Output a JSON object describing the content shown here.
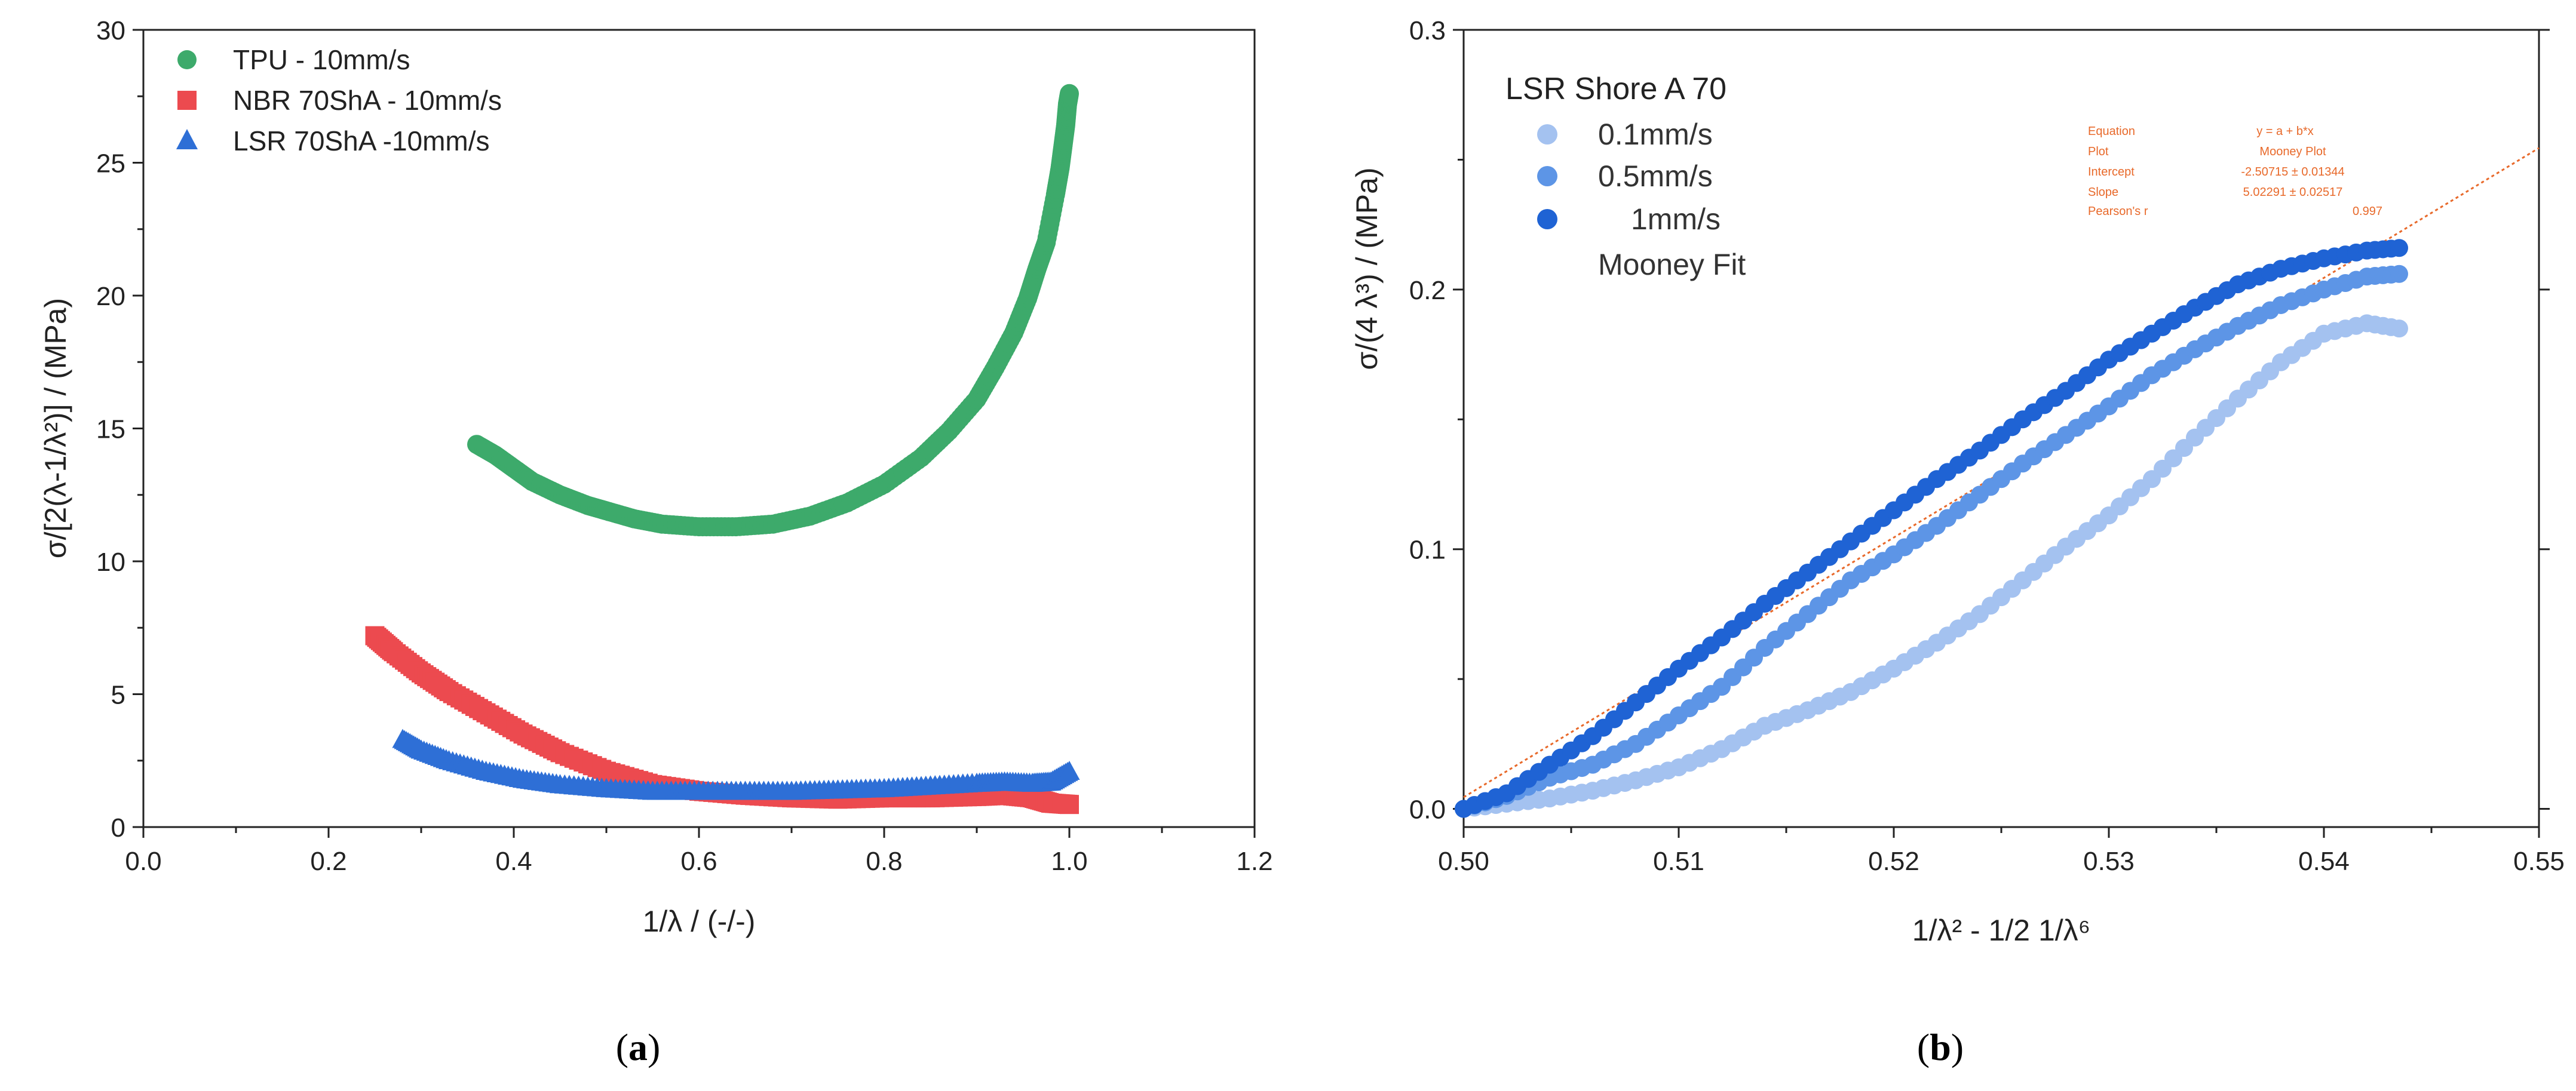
{
  "chart_data": [
    {
      "type": "scatter",
      "panel_label": "a",
      "xlabel": "1/λ / (-/-)",
      "ylabel": "σ/[2(λ-1/λ²)] / (MPa)",
      "xlim": [
        0.0,
        1.2
      ],
      "ylim": [
        0,
        30
      ],
      "xticks": [
        "0.0",
        "0.2",
        "0.4",
        "0.6",
        "0.8",
        "1.0",
        "1.2"
      ],
      "yticks": [
        "0",
        "5",
        "10",
        "15",
        "20",
        "25",
        "30"
      ],
      "legend_position": "top-left",
      "series": [
        {
          "name": "TPU - 10mm/s",
          "marker": "circle",
          "color": "#3daa6b",
          "points": [
            [
              0.36,
              14.4
            ],
            [
              0.38,
              14.0
            ],
            [
              0.4,
              13.5
            ],
            [
              0.42,
              13.0
            ],
            [
              0.45,
              12.5
            ],
            [
              0.48,
              12.1
            ],
            [
              0.5,
              11.9
            ],
            [
              0.53,
              11.6
            ],
            [
              0.56,
              11.4
            ],
            [
              0.6,
              11.3
            ],
            [
              0.64,
              11.3
            ],
            [
              0.68,
              11.4
            ],
            [
              0.72,
              11.7
            ],
            [
              0.76,
              12.2
            ],
            [
              0.8,
              12.9
            ],
            [
              0.84,
              13.9
            ],
            [
              0.87,
              14.9
            ],
            [
              0.9,
              16.1
            ],
            [
              0.92,
              17.3
            ],
            [
              0.94,
              18.6
            ],
            [
              0.955,
              19.9
            ],
            [
              0.965,
              21.0
            ],
            [
              0.975,
              22.0
            ],
            [
              0.985,
              23.8
            ],
            [
              0.99,
              24.8
            ],
            [
              0.993,
              25.6
            ],
            [
              0.996,
              26.4
            ],
            [
              0.998,
              27.2
            ],
            [
              1.0,
              27.6
            ]
          ]
        },
        {
          "name": "NBR 70ShA - 10mm/s",
          "marker": "square",
          "color": "#ec4a4f",
          "points": [
            [
              0.25,
              7.2
            ],
            [
              0.27,
              6.6
            ],
            [
              0.3,
              5.8
            ],
            [
              0.33,
              5.1
            ],
            [
              0.37,
              4.3
            ],
            [
              0.41,
              3.5
            ],
            [
              0.45,
              2.8
            ],
            [
              0.5,
              2.1
            ],
            [
              0.55,
              1.6
            ],
            [
              0.6,
              1.35
            ],
            [
              0.65,
              1.2
            ],
            [
              0.7,
              1.1
            ],
            [
              0.75,
              1.05
            ],
            [
              0.8,
              1.1
            ],
            [
              0.85,
              1.1
            ],
            [
              0.9,
              1.15
            ],
            [
              0.93,
              1.2
            ],
            [
              0.96,
              1.1
            ],
            [
              0.98,
              0.9
            ],
            [
              1.0,
              0.85
            ]
          ]
        },
        {
          "name": "LSR 70ShA -10mm/s",
          "marker": "triangle",
          "color": "#2e6fd6",
          "points": [
            [
              0.28,
              3.3
            ],
            [
              0.3,
              2.9
            ],
            [
              0.33,
              2.5
            ],
            [
              0.37,
              2.1
            ],
            [
              0.41,
              1.8
            ],
            [
              0.45,
              1.6
            ],
            [
              0.5,
              1.45
            ],
            [
              0.55,
              1.35
            ],
            [
              0.6,
              1.35
            ],
            [
              0.65,
              1.35
            ],
            [
              0.7,
              1.35
            ],
            [
              0.75,
              1.4
            ],
            [
              0.8,
              1.45
            ],
            [
              0.85,
              1.55
            ],
            [
              0.9,
              1.65
            ],
            [
              0.93,
              1.7
            ],
            [
              0.96,
              1.65
            ],
            [
              0.98,
              1.7
            ],
            [
              1.0,
              2.1
            ]
          ]
        }
      ]
    },
    {
      "type": "scatter",
      "panel_label": "b",
      "xlabel": "1/λ² - 1/2 1/λ⁶",
      "ylabel": "σ/(4 λ³) / (MPa)",
      "xlim": [
        0.5,
        0.55
      ],
      "ylim": [
        -0.007,
        0.3
      ],
      "xticks": [
        "0.50",
        "0.51",
        "0.52",
        "0.53",
        "0.54",
        "0.55"
      ],
      "yticks": [
        "0.0",
        "0.1",
        "0.2",
        "0.3"
      ],
      "legend_position": "top-left",
      "legend_title": "LSR Shore A 70",
      "series": [
        {
          "name": "0.1mm/s",
          "marker": "circle",
          "color": "#a4c2f0",
          "points": [
            [
              0.5,
              0.0
            ],
            [
              0.502,
              0.002
            ],
            [
              0.504,
              0.004
            ],
            [
              0.506,
              0.007
            ],
            [
              0.508,
              0.011
            ],
            [
              0.51,
              0.016
            ],
            [
              0.512,
              0.023
            ],
            [
              0.514,
              0.032
            ],
            [
              0.516,
              0.038
            ],
            [
              0.518,
              0.045
            ],
            [
              0.52,
              0.054
            ],
            [
              0.522,
              0.064
            ],
            [
              0.524,
              0.075
            ],
            [
              0.526,
              0.088
            ],
            [
              0.528,
              0.101
            ],
            [
              0.53,
              0.113
            ],
            [
              0.532,
              0.127
            ],
            [
              0.534,
              0.143
            ],
            [
              0.536,
              0.158
            ],
            [
              0.538,
              0.172
            ],
            [
              0.54,
              0.183
            ],
            [
              0.542,
              0.187
            ],
            [
              0.5435,
              0.185
            ]
          ]
        },
        {
          "name": "0.5mm/s",
          "marker": "circle",
          "color": "#5d95e6",
          "points": [
            [
              0.5,
              0.0
            ],
            [
              0.502,
              0.005
            ],
            [
              0.504,
              0.012
            ],
            [
              0.506,
              0.017
            ],
            [
              0.508,
              0.025
            ],
            [
              0.51,
              0.036
            ],
            [
              0.512,
              0.047
            ],
            [
              0.514,
              0.062
            ],
            [
              0.516,
              0.075
            ],
            [
              0.518,
              0.088
            ],
            [
              0.52,
              0.098
            ],
            [
              0.522,
              0.109
            ],
            [
              0.524,
              0.121
            ],
            [
              0.526,
              0.133
            ],
            [
              0.528,
              0.144
            ],
            [
              0.53,
              0.155
            ],
            [
              0.532,
              0.167
            ],
            [
              0.534,
              0.177
            ],
            [
              0.536,
              0.186
            ],
            [
              0.538,
              0.194
            ],
            [
              0.54,
              0.2
            ],
            [
              0.542,
              0.205
            ],
            [
              0.5435,
              0.206
            ]
          ]
        },
        {
          "name": "1mm/s",
          "marker": "circle",
          "color": "#1f63d4",
          "points": [
            [
              0.5,
              0.0
            ],
            [
              0.502,
              0.006
            ],
            [
              0.504,
              0.017
            ],
            [
              0.506,
              0.028
            ],
            [
              0.508,
              0.041
            ],
            [
              0.51,
              0.054
            ],
            [
              0.512,
              0.066
            ],
            [
              0.514,
              0.079
            ],
            [
              0.516,
              0.091
            ],
            [
              0.518,
              0.103
            ],
            [
              0.52,
              0.115
            ],
            [
              0.522,
              0.127
            ],
            [
              0.524,
              0.138
            ],
            [
              0.526,
              0.15
            ],
            [
              0.528,
              0.161
            ],
            [
              0.53,
              0.173
            ],
            [
              0.532,
              0.183
            ],
            [
              0.534,
              0.193
            ],
            [
              0.536,
              0.202
            ],
            [
              0.538,
              0.208
            ],
            [
              0.54,
              0.212
            ],
            [
              0.542,
              0.215
            ],
            [
              0.5435,
              0.216
            ]
          ]
        }
      ],
      "fit": {
        "name": "Mooney Fit",
        "color": "#e8692a",
        "x_range": [
          0.5,
          0.55
        ],
        "y_range": [
          0.0045,
          0.2545
        ]
      },
      "annotation": {
        "rows": [
          [
            "Equation",
            "y = a + b*x"
          ],
          [
            "Plot",
            "Mooney Plot"
          ],
          [
            "Intercept",
            "-2.50715 ± 0.01344"
          ],
          [
            "Slope",
            "5.02291 ± 0.02517"
          ],
          [
            "Pearson's r",
            "0.997"
          ]
        ]
      }
    }
  ]
}
